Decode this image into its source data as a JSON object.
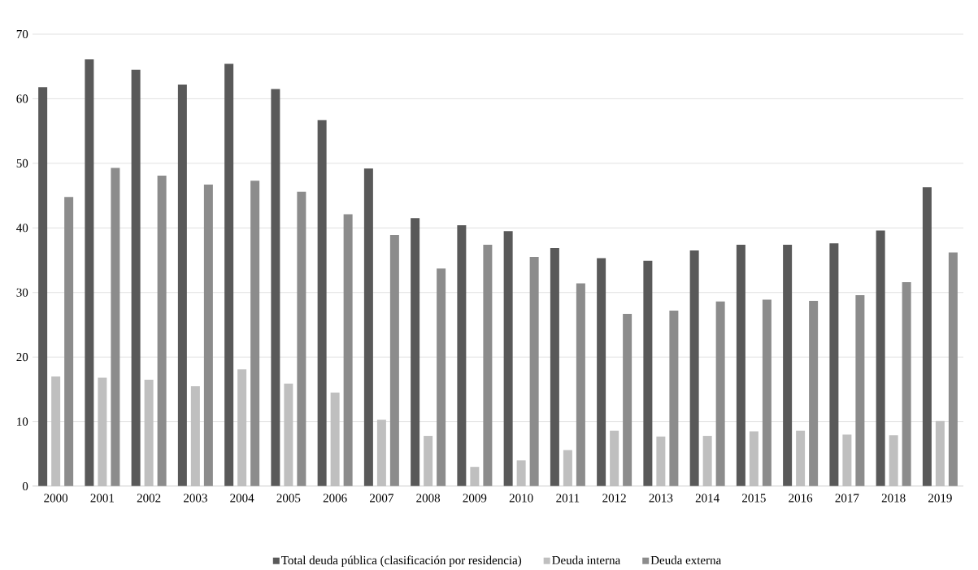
{
  "chart_data": {
    "type": "bar",
    "categories": [
      "2000",
      "2001",
      "2002",
      "2003",
      "2004",
      "2005",
      "2006",
      "2007",
      "2008",
      "2009",
      "2010",
      "2011",
      "2012",
      "2013",
      "2014",
      "2015",
      "2016",
      "2017",
      "2018",
      "2019"
    ],
    "series": [
      {
        "name": "Total deuda pública (clasificación por residencia)",
        "color": "#595959",
        "values": [
          61.8,
          66.1,
          64.5,
          62.2,
          65.4,
          61.5,
          56.7,
          49.2,
          41.5,
          40.4,
          39.5,
          36.9,
          35.3,
          34.9,
          36.5,
          37.4,
          37.4,
          37.6,
          39.6,
          46.3
        ]
      },
      {
        "name": "Deuda interna",
        "color": "#bfbfbf",
        "values": [
          17.0,
          16.8,
          16.5,
          15.5,
          18.1,
          15.9,
          14.5,
          10.3,
          7.8,
          3.0,
          4.0,
          5.6,
          8.6,
          7.7,
          7.8,
          8.5,
          8.6,
          8.0,
          7.9,
          10.1
        ]
      },
      {
        "name": "Deuda externa",
        "color": "#8c8c8c",
        "values": [
          44.8,
          49.3,
          48.1,
          46.7,
          47.3,
          45.6,
          42.1,
          38.9,
          33.7,
          37.4,
          35.5,
          31.4,
          26.7,
          27.2,
          28.6,
          28.9,
          28.7,
          29.6,
          31.6,
          36.2
        ]
      }
    ],
    "ylim": [
      0,
      70
    ],
    "yticks": [
      0,
      10,
      20,
      30,
      40,
      50,
      60,
      70
    ],
    "grid": "y",
    "legend": "bottom"
  }
}
